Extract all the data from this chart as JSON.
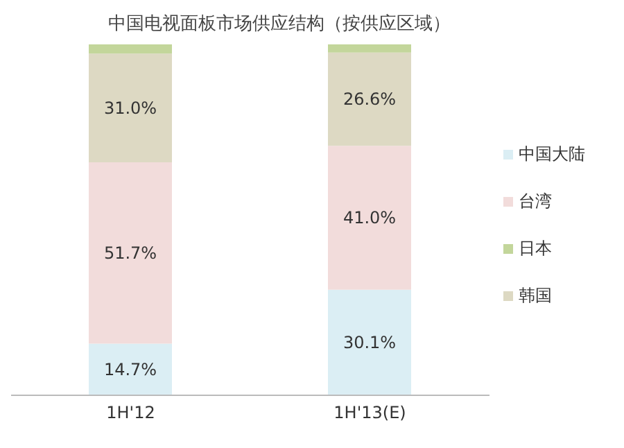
{
  "chart_data": {
    "type": "bar",
    "title": "中国电视面板市场供应结构（按供应区域）",
    "categories": [
      "1H'12",
      "1H'13(E)"
    ],
    "stacked": true,
    "ylim": [
      0,
      100
    ],
    "tick_labels": "x",
    "legend": "right",
    "grid": false,
    "series": [
      {
        "name": "中国大陆",
        "color": "#dbeef4",
        "values": [
          14.7,
          30.1
        ],
        "value_labels": [
          "14.7%",
          "30.1%"
        ]
      },
      {
        "name": "台湾",
        "color": "#f2dcdb",
        "values": [
          51.7,
          41.0
        ],
        "value_labels": [
          "51.7%",
          "41.0%"
        ]
      },
      {
        "name": "韩国",
        "color": "#ddd9c3",
        "values": [
          31.0,
          26.6
        ],
        "value_labels": [
          "31.0%",
          "26.6%"
        ]
      },
      {
        "name": "日本",
        "color": "#c3d69b",
        "values": [
          2.6,
          2.3
        ],
        "value_labels": [
          null,
          null
        ]
      }
    ]
  }
}
